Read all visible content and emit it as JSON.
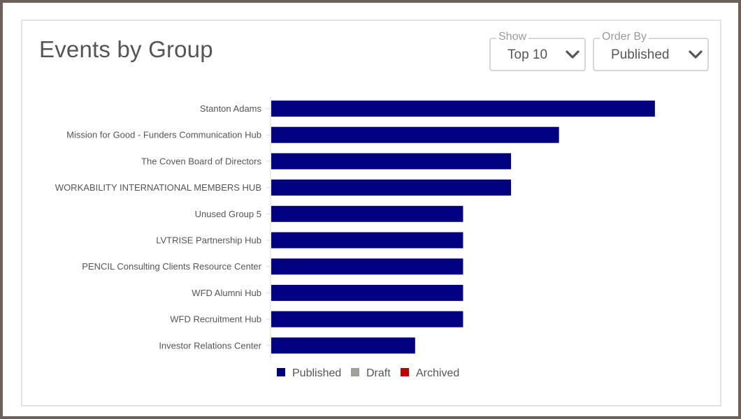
{
  "header": {
    "title": "Events by Group"
  },
  "controls": {
    "show": {
      "label": "Show",
      "value": "Top 10"
    },
    "order_by": {
      "label": "Order By",
      "value": "Published"
    }
  },
  "colors": {
    "published": "#000080",
    "draft": "#a0a09a",
    "archived": "#c00000"
  },
  "chart_data": {
    "type": "bar",
    "orientation": "horizontal",
    "categories": [
      "Stanton Adams",
      "Mission for Good - Funders Communication Hub",
      "The Coven Board of Directors",
      "WORKABILITY INTERNATIONAL MEMBERS HUB",
      "Unused Group 5",
      "LVTRISE Partnership Hub",
      "PENCIL Consulting Clients Resource Center",
      "WFD Alumni Hub",
      "WFD Recruitment Hub",
      "Investor Relations Center"
    ],
    "series": [
      {
        "name": "Published",
        "values": [
          8,
          6,
          5,
          5,
          4,
          4,
          4,
          4,
          4,
          3
        ]
      },
      {
        "name": "Draft",
        "values": [
          0,
          0,
          0,
          0,
          0,
          0,
          0,
          0,
          0,
          0
        ]
      },
      {
        "name": "Archived",
        "values": [
          0,
          0,
          0,
          0,
          0,
          0,
          0,
          0,
          0,
          0
        ]
      }
    ],
    "xlim": [
      0,
      8.6
    ],
    "grid": false,
    "legend_position": "bottom"
  }
}
